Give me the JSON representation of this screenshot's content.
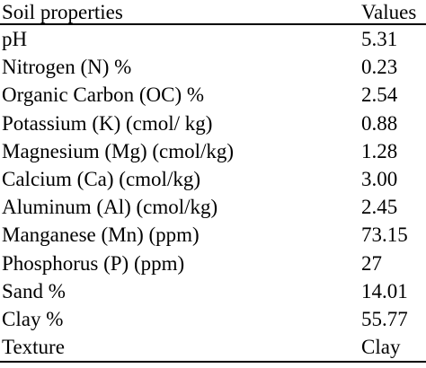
{
  "table": {
    "headers": {
      "property": "Soil properties",
      "value": "Values"
    },
    "rows": [
      {
        "property": "pH",
        "value": "5.31"
      },
      {
        "property": "Nitrogen (N) %",
        "value": "0.23"
      },
      {
        "property": "Organic Carbon (OC) %",
        "value": "2.54"
      },
      {
        "property": "Potassium (K) (cmol/ kg)",
        "value": "0.88"
      },
      {
        "property": "Magnesium (Mg) (cmol/kg)",
        "value": "1.28"
      },
      {
        "property": "Calcium (Ca) (cmol/kg)",
        "value": "3.00"
      },
      {
        "property": "Aluminum (Al) (cmol/kg)",
        "value": "2.45"
      },
      {
        "property": "Manganese (Mn) (ppm)",
        "value": "73.15"
      },
      {
        "property": "Phosphorus (P) (ppm)",
        "value": "27"
      },
      {
        "property": "Sand %",
        "value": "14.01"
      },
      {
        "property": "Clay %",
        "value": "55.77"
      },
      {
        "property": "Texture",
        "value": "Clay"
      }
    ]
  }
}
